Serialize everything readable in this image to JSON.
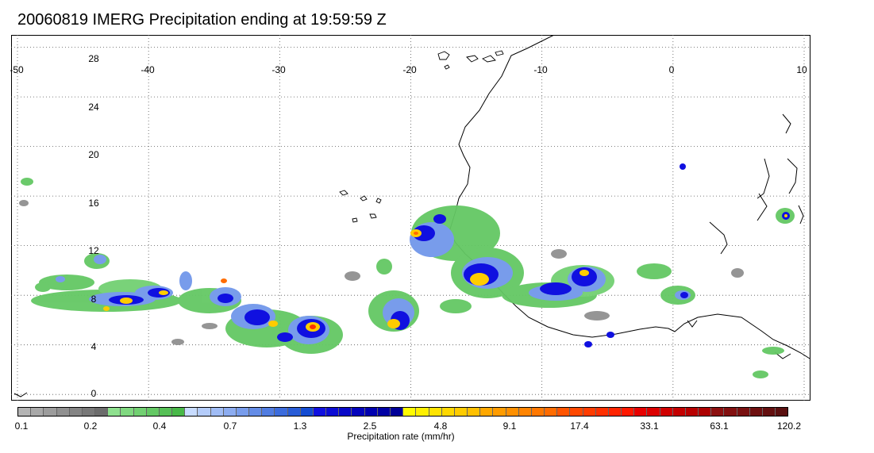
{
  "title": "20060819 IMERG Precipitation ending at 19:59:59 Z",
  "longitude_labels": [
    "-50",
    "-40",
    "-30",
    "-20",
    "-10",
    "0",
    "10"
  ],
  "latitude_labels": [
    "28",
    "24",
    "20",
    "16",
    "12",
    "8",
    "4",
    "0"
  ],
  "colorbar": {
    "label": "Precipitation rate (mm/hr)",
    "tick_labels": [
      "0.1",
      "0.2",
      "0.4",
      "0.7",
      "1.3",
      "2.5",
      "4.8",
      "9.1",
      "17.4",
      "33.1",
      "63.1",
      "120.2"
    ],
    "colors": [
      "#b4b4b4",
      "#a8a8a8",
      "#9c9c9c",
      "#909090",
      "#848484",
      "#787878",
      "#6c6c6c",
      "#8ee08e",
      "#80d880",
      "#72d072",
      "#64c864",
      "#56c056",
      "#48b848",
      "#c8dcff",
      "#b4ccfa",
      "#a0bcf5",
      "#8cacf0",
      "#789ceb",
      "#648ce6",
      "#507ce1",
      "#3c6cdc",
      "#285cd7",
      "#144cd2",
      "#1010e0",
      "#0c0cd4",
      "#0808c8",
      "#0404bc",
      "#0000b0",
      "#0000a4",
      "#000098",
      "#fffc00",
      "#fff000",
      "#ffe400",
      "#ffd800",
      "#ffcc00",
      "#ffc000",
      "#ffa800",
      "#ff9c00",
      "#ff9000",
      "#ff8400",
      "#ff7800",
      "#ff6c00",
      "#ff5400",
      "#ff4800",
      "#ff3c00",
      "#ff3000",
      "#ff2400",
      "#ff1800",
      "#e80000",
      "#dc0000",
      "#d00000",
      "#c40000",
      "#b80000",
      "#ac0000",
      "#8c1010",
      "#821010",
      "#781010",
      "#6e1010",
      "#641010",
      "#5a1010"
    ]
  },
  "map": {
    "lon_range": [
      -50,
      10
    ],
    "lat_range": [
      -0.5,
      29
    ],
    "grid_interval_lon": 10,
    "grid_interval_lat": 4,
    "grid": "dotted"
  }
}
